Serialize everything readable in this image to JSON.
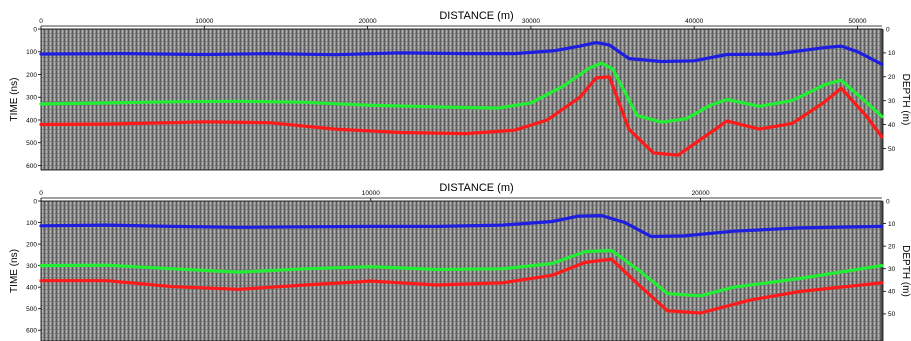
{
  "chart_data": [
    {
      "type": "line",
      "title": "DISTANCE (m)",
      "ylabel": "TIME (ns)",
      "y2label": "DEPTH (m)",
      "xlim": [
        0,
        51500
      ],
      "ylim": [
        0,
        620
      ],
      "y2lim": [
        0,
        59
      ],
      "x_ticks": [
        0,
        10000,
        20000,
        30000,
        40000,
        50000
      ],
      "y_ticks": [
        0,
        100,
        200,
        300,
        400,
        500,
        600
      ],
      "y2_ticks": [
        10,
        20,
        30,
        40,
        50
      ],
      "colors": {
        "blue": "#1e1ee0",
        "green": "#22ee33",
        "red": "#ff1a1a",
        "radargram": "#7a7a7a"
      },
      "series": [
        {
          "color": "blue",
          "x": [
            0,
            5000,
            10000,
            14000,
            18000,
            22000,
            26000,
            29000,
            31500,
            33000,
            34000,
            34800,
            36000,
            38000,
            40000,
            42000,
            45000,
            48000,
            49000,
            50000,
            51500
          ],
          "y": [
            110,
            108,
            112,
            108,
            113,
            105,
            108,
            108,
            95,
            75,
            60,
            70,
            130,
            143,
            140,
            112,
            110,
            82,
            75,
            100,
            155
          ]
        },
        {
          "color": "green",
          "x": [
            0,
            4000,
            8000,
            12000,
            16000,
            20000,
            24000,
            28000,
            30000,
            32000,
            33500,
            34300,
            35000,
            36500,
            38000,
            39500,
            41000,
            42000,
            44000,
            46000,
            48000,
            49000,
            50500,
            51500
          ],
          "y": [
            330,
            325,
            320,
            318,
            322,
            335,
            342,
            348,
            325,
            250,
            175,
            150,
            175,
            380,
            410,
            395,
            335,
            310,
            340,
            315,
            245,
            225,
            320,
            385
          ]
        },
        {
          "color": "red",
          "x": [
            0,
            4000,
            8000,
            10000,
            14000,
            18000,
            22000,
            26000,
            29000,
            31000,
            33000,
            34000,
            34800,
            36000,
            37500,
            39000,
            40500,
            42000,
            44000,
            46000,
            48000,
            49000,
            50500,
            51500
          ],
          "y": [
            420,
            418,
            412,
            408,
            412,
            440,
            455,
            460,
            445,
            400,
            300,
            215,
            210,
            440,
            545,
            555,
            480,
            405,
            440,
            415,
            320,
            260,
            380,
            475
          ]
        }
      ]
    },
    {
      "type": "line",
      "title": "DISTANCE (m)",
      "ylabel": "TIME (ns)",
      "y2label": "DEPTH (m)",
      "xlim": [
        0,
        25500
      ],
      "ylim": [
        0,
        650
      ],
      "y2lim": [
        0,
        62
      ],
      "x_ticks": [
        0,
        10000,
        20000
      ],
      "y_ticks": [
        0,
        100,
        200,
        300,
        400,
        500,
        600
      ],
      "y2_ticks": [
        10,
        20,
        30,
        40,
        50
      ],
      "colors": {
        "blue": "#1e1ee0",
        "green": "#22ee33",
        "red": "#ff1a1a",
        "radargram": "#7a7a7a"
      },
      "series": [
        {
          "color": "blue",
          "x": [
            0,
            2000,
            4000,
            6000,
            8000,
            10000,
            12000,
            14000,
            15500,
            16300,
            17000,
            17700,
            18500,
            19500,
            21000,
            23000,
            25500
          ],
          "y": [
            115,
            112,
            118,
            122,
            120,
            118,
            118,
            112,
            95,
            70,
            68,
            100,
            165,
            162,
            140,
            125,
            118
          ]
        },
        {
          "color": "green",
          "x": [
            0,
            2000,
            4000,
            6000,
            8000,
            10000,
            12000,
            14000,
            15500,
            16500,
            17300,
            18200,
            19000,
            20000,
            21000,
            23000,
            25500
          ],
          "y": [
            300,
            298,
            315,
            330,
            315,
            305,
            318,
            315,
            290,
            235,
            230,
            330,
            430,
            440,
            400,
            360,
            300
          ]
        },
        {
          "color": "red",
          "x": [
            0,
            2000,
            4000,
            6000,
            8000,
            10000,
            12000,
            14000,
            15500,
            16500,
            17300,
            18200,
            19000,
            20000,
            21500,
            23000,
            25500
          ],
          "y": [
            370,
            370,
            398,
            410,
            390,
            372,
            390,
            380,
            345,
            285,
            270,
            400,
            510,
            520,
            460,
            420,
            380
          ]
        }
      ]
    }
  ]
}
